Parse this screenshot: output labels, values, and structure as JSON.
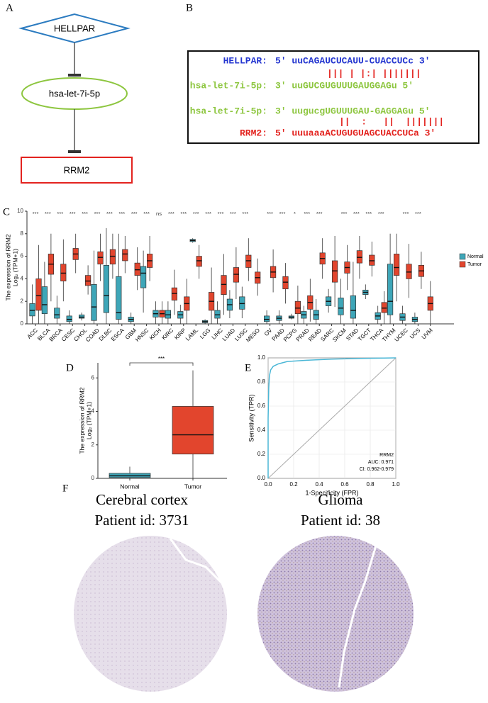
{
  "panel_labels": [
    "A",
    "B",
    "C",
    "D",
    "E",
    "F"
  ],
  "diagram": {
    "nodes": [
      {
        "label": "HELLPAR"
      },
      {
        "label": "hsa-let-7i-5p"
      },
      {
        "label": "RRM2"
      }
    ]
  },
  "alignment": {
    "rows": [
      {
        "name": "HELLPAR:",
        "sequence": "5' uuCAGAUCUCAUU-CUACCUCc 3'",
        "color": "#2436d0"
      },
      {
        "name": "hsa-let-7i-5p:",
        "sequence": "3' uuGUCGUGUUUGAUGGAGu 5'",
        "color": "#8dc63f"
      },
      {
        "name": "hsa-let-7i-5p:",
        "sequence": "3' uugucgUGUUUGAU-GAGGAGu 5'",
        "color": "#8dc63f"
      },
      {
        "name": "RRM2:",
        "sequence": "5' uuuaaaACUGUGUAGCUACCUCa 3'",
        "color": "#e3231f"
      }
    ],
    "pairings": [
      "||| | |:| |||||||",
      "||  :   ||  |||||||"
    ],
    "pairing_color": "#e3231f"
  },
  "chart_data": [
    {
      "type": "boxplot",
      "y_label": [
        "The expression of RRM2",
        "Log₂ (TPM+1)"
      ],
      "categories": [
        "ACC",
        "BLCA",
        "BRCA",
        "CESC",
        "CHOL",
        "COAD",
        "DLBC",
        "ESCA",
        "GBM",
        "HNSC",
        "KICH",
        "KIRC",
        "KIRP",
        "LAML",
        "LGG",
        "LIHC",
        "LUAD",
        "LUSC",
        "MESO",
        "OV",
        "PAAD",
        "PCPG",
        "PRAD",
        "READ",
        "SARC",
        "SKCM",
        "STAD",
        "TGCT",
        "THCA",
        "THYM",
        "UCEC",
        "UCS",
        "UVM"
      ],
      "significance": [
        "***",
        "***",
        "***",
        "***",
        "***",
        "***",
        "***",
        "***",
        "***",
        "***",
        "ns",
        "***",
        "***",
        "***",
        "***",
        "***",
        "***",
        "***",
        null,
        "***",
        "***",
        "*",
        "***",
        "***",
        null,
        "***",
        "***",
        "***",
        "***",
        null,
        "***",
        "***",
        null
      ],
      "series": [
        {
          "name": "Normal",
          "color": "#3ea6b8",
          "values": [
            {
              "low": 0,
              "q1": 0.7,
              "median": 1.2,
              "q3": 1.8,
              "high": 3.5
            },
            {
              "low": 0,
              "q1": 0.9,
              "median": 1.7,
              "q3": 3.3,
              "high": 5.5
            },
            {
              "low": 0,
              "q1": 0.5,
              "median": 0.8,
              "q3": 1.4,
              "high": 2.5
            },
            {
              "low": 0,
              "q1": 0.2,
              "median": 0.4,
              "q3": 0.7,
              "high": 1.2
            },
            {
              "low": 0.3,
              "q1": 0.5,
              "median": 0.6,
              "q3": 0.8,
              "high": 1.0
            },
            {
              "low": 0,
              "q1": 0.3,
              "median": 1.5,
              "q3": 3.5,
              "high": 6.5
            },
            {
              "low": 0,
              "q1": 1,
              "median": 2.5,
              "q3": 5.2,
              "high": 8.5
            },
            {
              "low": 0,
              "q1": 0.4,
              "median": 1,
              "q3": 4.2,
              "high": 8
            },
            {
              "low": 0,
              "q1": 0.2,
              "median": 0.4,
              "q3": 0.6,
              "high": 1
            },
            {
              "low": 1,
              "q1": 3.2,
              "median": 4.5,
              "q3": 5.1,
              "high": 6.5
            },
            {
              "low": 0,
              "q1": 0.6,
              "median": 0.9,
              "q3": 1.2,
              "high": 2
            },
            {
              "low": 0,
              "q1": 0.5,
              "median": 0.8,
              "q3": 1.2,
              "high": 2
            },
            {
              "low": 0,
              "q1": 0.5,
              "median": 0.8,
              "q3": 1.1,
              "high": 1.7
            },
            {
              "low": 7.2,
              "q1": 7.3,
              "median": 7.4,
              "q3": 7.5,
              "high": 7.6
            },
            {
              "low": 0,
              "q1": 0.1,
              "median": 0.2,
              "q3": 0.3,
              "high": 0.4
            },
            {
              "low": 0,
              "q1": 0.5,
              "median": 0.8,
              "q3": 1.2,
              "high": 2
            },
            {
              "low": 0.5,
              "q1": 1.2,
              "median": 1.7,
              "q3": 2.2,
              "high": 3
            },
            {
              "low": 0.5,
              "q1": 1.3,
              "median": 1.8,
              "q3": 2.4,
              "high": 3.3
            },
            null,
            {
              "low": 0,
              "q1": 0.2,
              "median": 0.4,
              "q3": 0.7,
              "high": 1.2
            },
            {
              "low": 0,
              "q1": 0.3,
              "median": 0.5,
              "q3": 0.7,
              "high": 1.2
            },
            {
              "low": 0.4,
              "q1": 0.5,
              "median": 0.6,
              "q3": 0.7,
              "high": 0.9
            },
            {
              "low": 0,
              "q1": 0.5,
              "median": 0.8,
              "q3": 1.1,
              "high": 1.6
            },
            {
              "low": 0,
              "q1": 0.4,
              "median": 0.8,
              "q3": 1.2,
              "high": 2.2
            },
            {
              "low": 1,
              "q1": 1.6,
              "median": 2,
              "q3": 2.4,
              "high": 3.1
            },
            {
              "low": 0,
              "q1": 0.8,
              "median": 1.4,
              "q3": 2.3,
              "high": 4
            },
            {
              "low": 0,
              "q1": 0.5,
              "median": 1.2,
              "q3": 2.5,
              "high": 5.5
            },
            {
              "low": 2.2,
              "q1": 2.6,
              "median": 2.8,
              "q3": 3.0,
              "high": 3.5
            },
            {
              "low": 0,
              "q1": 0.4,
              "median": 0.7,
              "q3": 1.0,
              "high": 1.6
            },
            {
              "low": 0,
              "q1": 0.8,
              "median": 2,
              "q3": 5.3,
              "high": 8
            },
            {
              "low": 0,
              "q1": 0.3,
              "median": 0.6,
              "q3": 0.9,
              "high": 1.6
            },
            {
              "low": 0,
              "q1": 0.2,
              "median": 0.4,
              "q3": 0.6,
              "high": 1
            },
            null
          ]
        },
        {
          "name": "Tumor",
          "color": "#e2452d",
          "values": [
            {
              "low": 0,
              "q1": 1.2,
              "median": 2.5,
              "q3": 4,
              "high": 7
            },
            {
              "low": 2,
              "q1": 4.4,
              "median": 5.3,
              "q3": 6.2,
              "high": 8
            },
            {
              "low": 2,
              "q1": 3.8,
              "median": 4.5,
              "q3": 5.3,
              "high": 7.5
            },
            {
              "low": 4.5,
              "q1": 5.7,
              "median": 6.2,
              "q3": 6.7,
              "high": 8
            },
            {
              "low": 2.6,
              "q1": 3.4,
              "median": 3.8,
              "q3": 4.3,
              "high": 5.2
            },
            {
              "low": 3.8,
              "q1": 5.3,
              "median": 5.9,
              "q3": 6.4,
              "high": 8
            },
            {
              "low": 4,
              "q1": 5.3,
              "median": 6,
              "q3": 6.6,
              "high": 8
            },
            {
              "low": 4.5,
              "q1": 5.6,
              "median": 6.2,
              "q3": 6.6,
              "high": 7.8
            },
            {
              "low": 3,
              "q1": 4.3,
              "median": 4.8,
              "q3": 5.4,
              "high": 6.8
            },
            {
              "low": 3.8,
              "q1": 5.0,
              "median": 5.6,
              "q3": 6.2,
              "high": 7.8
            },
            {
              "low": 0,
              "q1": 0.6,
              "median": 0.9,
              "q3": 1.2,
              "high": 2
            },
            {
              "low": 0.8,
              "q1": 2.1,
              "median": 2.7,
              "q3": 3.2,
              "high": 4.8
            },
            {
              "low": 0,
              "q1": 1.2,
              "median": 1.8,
              "q3": 2.4,
              "high": 4
            },
            {
              "low": 4,
              "q1": 5.1,
              "median": 5.6,
              "q3": 6.0,
              "high": 7
            },
            {
              "low": 0,
              "q1": 1.2,
              "median": 2,
              "q3": 2.8,
              "high": 5
            },
            {
              "low": 0.8,
              "q1": 2.6,
              "median": 3.5,
              "q3": 4.3,
              "high": 6.2
            },
            {
              "low": 2.2,
              "q1": 3.7,
              "median": 4.4,
              "q3": 5.0,
              "high": 6.8
            },
            {
              "low": 3.8,
              "q1": 5.0,
              "median": 5.6,
              "q3": 6.1,
              "high": 7.6
            },
            {
              "low": 2.5,
              "q1": 3.6,
              "median": 4.1,
              "q3": 4.6,
              "high": 5.8
            },
            {
              "low": 2.8,
              "q1": 4.1,
              "median": 4.6,
              "q3": 5.1,
              "high": 6.6
            },
            {
              "low": 1.8,
              "q1": 3.1,
              "median": 3.7,
              "q3": 4.2,
              "high": 5.4
            },
            {
              "low": 0,
              "q1": 0.9,
              "median": 1.4,
              "q3": 2.0,
              "high": 3.4
            },
            {
              "low": 0.2,
              "q1": 1.3,
              "median": 1.9,
              "q3": 2.5,
              "high": 4.0
            },
            {
              "low": 4,
              "q1": 5.3,
              "median": 5.8,
              "q3": 6.3,
              "high": 7.6
            },
            {
              "low": 1.5,
              "q1": 3.7,
              "median": 4.7,
              "q3": 5.6,
              "high": 7.8
            },
            {
              "low": 3,
              "q1": 4.5,
              "median": 5.0,
              "q3": 5.5,
              "high": 7
            },
            {
              "low": 4,
              "q1": 5.4,
              "median": 5.9,
              "q3": 6.5,
              "high": 7.8
            },
            {
              "low": 4.2,
              "q1": 5.2,
              "median": 5.6,
              "q3": 6.1,
              "high": 7.3
            },
            {
              "low": 0,
              "q1": 1.0,
              "median": 1.4,
              "q3": 1.9,
              "high": 2.9
            },
            {
              "low": 2,
              "q1": 4.3,
              "median": 5.0,
              "q3": 6.2,
              "high": 8
            },
            {
              "low": 2.3,
              "q1": 4.0,
              "median": 4.6,
              "q3": 5.3,
              "high": 7.1
            },
            {
              "low": 3.1,
              "q1": 4.2,
              "median": 4.7,
              "q3": 5.2,
              "high": 6.4
            },
            {
              "low": 0,
              "q1": 1.2,
              "median": 1.8,
              "q3": 2.4,
              "high": 3.8
            }
          ]
        }
      ],
      "ylim": [
        0,
        10
      ],
      "yticks": [
        0,
        2,
        4,
        6,
        8,
        10
      ],
      "legend": "right"
    },
    {
      "type": "boxplot",
      "y_label": [
        "The expression of RRM2",
        "Log₂ (TPM+1)"
      ],
      "categories": [
        "Normal",
        "Tumor"
      ],
      "values": [
        {
          "low": 0,
          "q1": 0.05,
          "median": 0.15,
          "q3": 0.3,
          "high": 0.7
        },
        {
          "low": 0,
          "q1": 1.45,
          "median": 2.6,
          "q3": 4.3,
          "high": 6.45
        }
      ],
      "colors": [
        "#3ea6b8",
        "#e2452d"
      ],
      "significance": "***",
      "ylim": [
        0,
        6.9
      ],
      "yticks": [
        0,
        2,
        4,
        6
      ]
    },
    {
      "type": "roc",
      "x": [
        0,
        0,
        0.005,
        0.01,
        0.02,
        0.04,
        0.08,
        0.15,
        0.3,
        0.5,
        0.7,
        1
      ],
      "y": [
        0,
        0.5,
        0.75,
        0.85,
        0.9,
        0.93,
        0.95,
        0.97,
        0.98,
        0.99,
        0.995,
        1
      ],
      "color": "#4bb7d6",
      "x_label": "1-Specificity (FPR)",
      "y_label": "Sensitivity (TPR)",
      "annotations": [
        "RRM2",
        "AUC: 0.971",
        "CI: 0.962-0.979"
      ],
      "xlim": [
        0,
        1
      ],
      "ylim": [
        0,
        1
      ],
      "xticks": [
        {
          "value": 0,
          "label": "0.0"
        },
        0.2,
        0.4,
        0.6,
        0.8,
        {
          "value": 1,
          "label": "1.0"
        }
      ],
      "yticks": [
        {
          "value": 0,
          "label": "0.0"
        },
        0.2,
        0.4,
        0.6,
        0.8,
        {
          "value": 1,
          "label": "1.0"
        }
      ],
      "grid": true
    }
  ],
  "ihc": {
    "panels": [
      {
        "title": "Cerebral cortex",
        "subtitle": "Patient id: 3731"
      },
      {
        "title": "Glioma",
        "subtitle": "Patient id: 38"
      }
    ]
  }
}
